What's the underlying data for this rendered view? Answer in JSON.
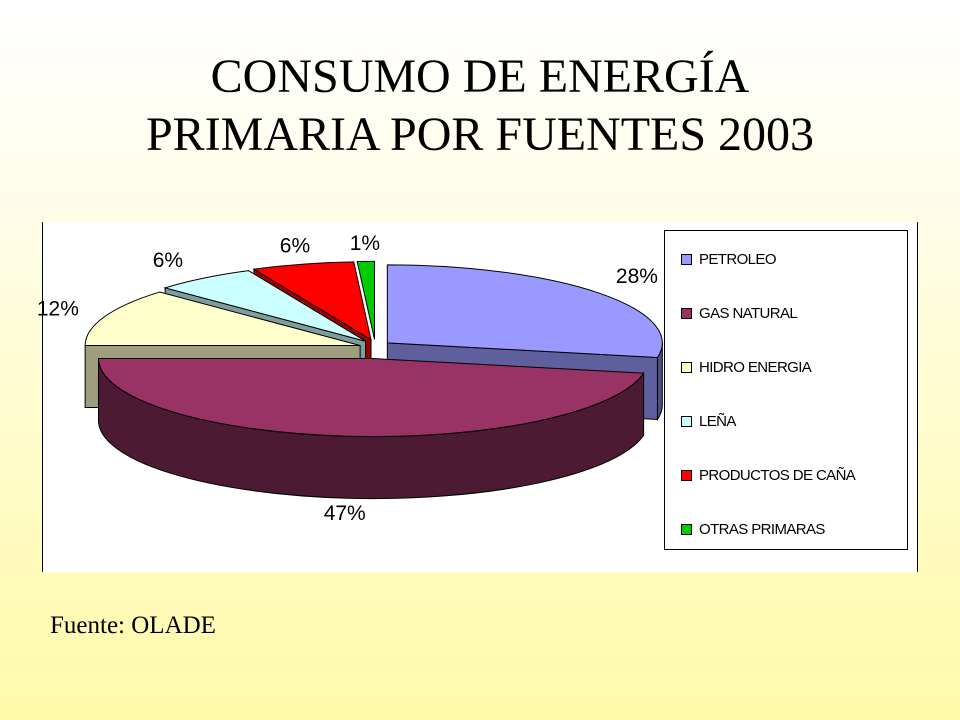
{
  "title": {
    "line1": "CONSUMO DE ENERGÍA",
    "line2": "PRIMARIA POR FUENTES 2003"
  },
  "source": "Fuente: OLADE",
  "chart_data": {
    "type": "pie",
    "three_d": true,
    "exploded": true,
    "legend_position": "right",
    "categories": [
      "PETROLEO",
      "GAS NATURAL",
      "HIDRO ENERGIA",
      "LEÑA",
      "PRODUCTOS DE CAÑA",
      "OTRAS PRIMARAS"
    ],
    "values": [
      28,
      47,
      12,
      6,
      6,
      1
    ],
    "labels": [
      "28%",
      "47%",
      "12%",
      "6%",
      "6%",
      "1%"
    ],
    "colors": [
      "#9999ff",
      "#993366",
      "#ffffcc",
      "#ccffff",
      "#ff0000",
      "#00cc00"
    ]
  }
}
